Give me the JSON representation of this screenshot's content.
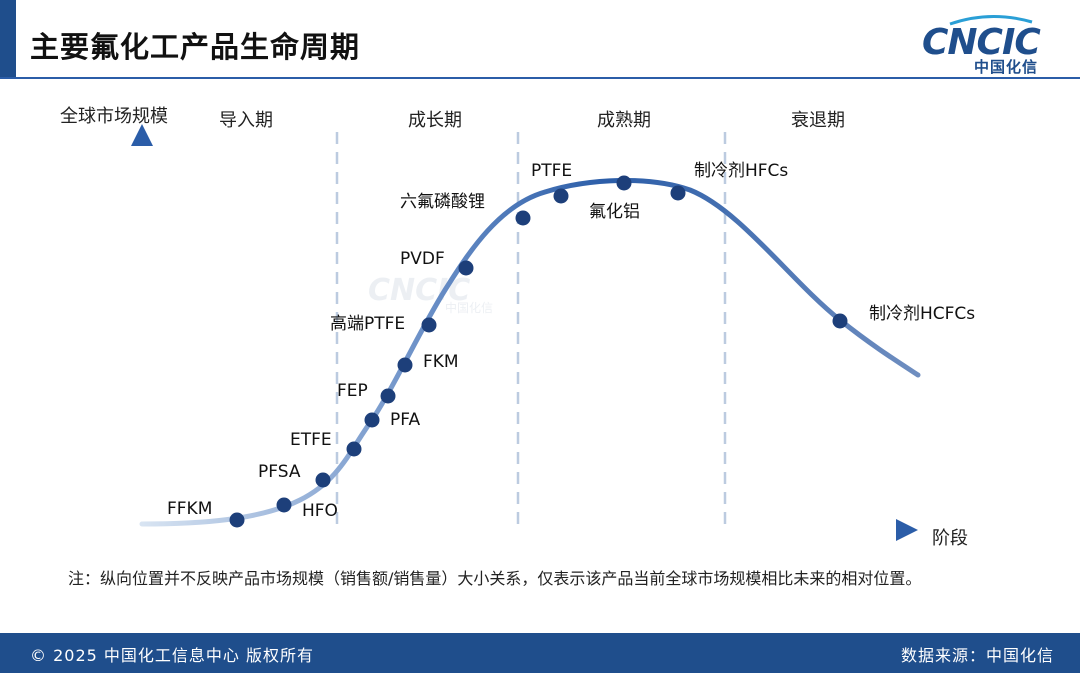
{
  "header": {
    "title": "主要氟化工产品生命周期",
    "logo_text": "CNCIC",
    "logo_sub": "中国化信",
    "watermark_text": "CNCIC",
    "watermark_sub": "中国化信"
  },
  "axes": {
    "y_label": "全球市场规模",
    "x_label": "阶段"
  },
  "stages": [
    "导入期",
    "成长期",
    "成熟期",
    "衰退期"
  ],
  "products": [
    "FFKM",
    "HFO",
    "PFSA",
    "ETFE",
    "PFA",
    "FEP",
    "FKM",
    "高端PTFE",
    "PVDF",
    "六氟磷酸锂",
    "PTFE",
    "氟化铝",
    "制冷剂HFCs",
    "制冷剂HCFCs"
  ],
  "note": "注：纵向位置并不反映产品市场规模（销售额/销售量）大小关系，仅表示该产品当前全球市场规模相比未来的相对位置。",
  "footer": {
    "copyright": "© 2025 中国化工信息中心  版权所有",
    "source": "数据来源：中国化信"
  },
  "colors": {
    "brand": "#1f4e8c",
    "dot": "#1d3f7a",
    "logo_accent": "#2a9fd6"
  }
}
